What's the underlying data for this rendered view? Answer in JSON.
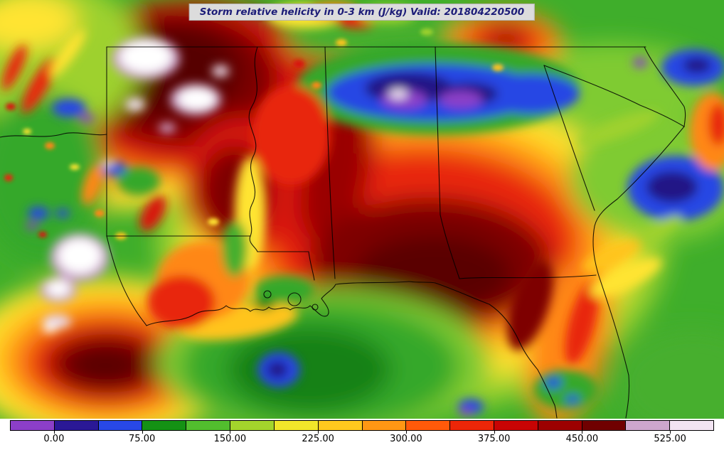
{
  "title_bar": {
    "text": "Storm relative helicity in 0-3 km (J/kg) Valid: 201804220500"
  },
  "chart_data": {
    "type": "heatmap",
    "title": "Storm relative helicity in 0-3 km (J/kg) Valid: 201804220500",
    "variable": "Storm relative helicity in 0-3 km",
    "units": "J/kg",
    "valid_time": "201804220500",
    "geography": "Southeastern United States with state outlines (east Texas / Arkansas to the Carolinas, Gulf Coast, Louisiana, Mississippi, Alabama, Georgia and Florida)",
    "colorbar": {
      "orientation": "horizontal",
      "position": "bottom",
      "tick_labels": [
        "0.00",
        "75.00",
        "150.00",
        "225.00",
        "300.00",
        "375.00",
        "450.00",
        "525.00"
      ],
      "tick_interval": 75,
      "segment_interval": 37.5,
      "segment_colors": [
        "#8C3FC8",
        "#2A1896",
        "#2848E8",
        "#149114",
        "#52BE2E",
        "#A4D52C",
        "#F2E62A",
        "#FFC81E",
        "#FF9714",
        "#FF5A0A",
        "#ED2608",
        "#C80404",
        "#9C0000",
        "#700000",
        "#CDA6CD",
        "#F2E4F2"
      ]
    },
    "notable_features": [
      "Very high helicity (dark red with white >525 pockets) over Arkansas / northern Louisiana region",
      "Large dark-red maximum over southern Alabama, southwest Georgia and the Florida Panhandle",
      "Blue/purple minimum band (near 0-75) across northern Alabama into Georgia with small white pocket",
      "Strong dark-red maximum with maroon core near the lower-left (Texas coast) corner",
      "Green low-value region over the central Gulf with small blue pockets",
      "Blue/indigo minimum offshore of the Georgia/Carolina coast",
      "Greens with yellow-green streaks over the Carolinas and southeast Florida"
    ]
  }
}
